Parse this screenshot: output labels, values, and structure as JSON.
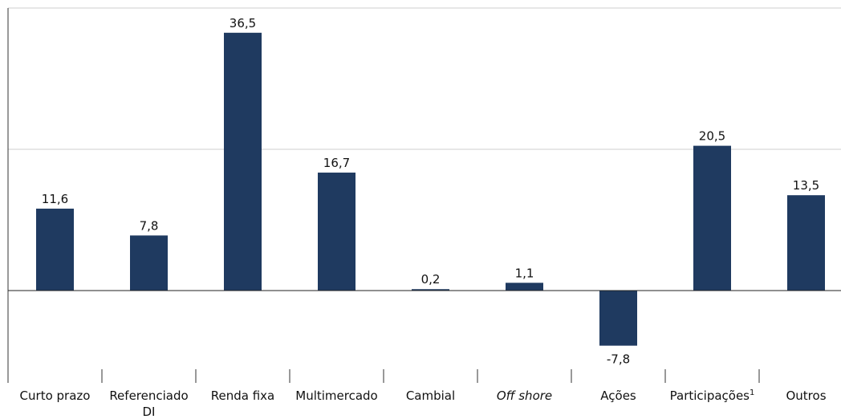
{
  "chart_data": {
    "type": "bar",
    "categories": [
      "Curto prazo",
      "Referenciado DI",
      "Renda fixa",
      "Multimercado",
      "Cambial",
      "Off shore",
      "Ações",
      "Participações¹",
      "Outros"
    ],
    "values": [
      11.6,
      7.8,
      36.5,
      16.7,
      0.2,
      1.1,
      -7.8,
      20.5,
      13.5
    ],
    "value_labels": [
      "11,6",
      "7,8",
      "36,5",
      "16,7",
      "0,2",
      "1,1",
      "-7,8",
      "20,5",
      "13,5"
    ],
    "italic_categories": [
      "Off shore"
    ],
    "ylim": [
      -20,
      40
    ],
    "gridlines": [
      20,
      40
    ],
    "grid": true,
    "legend": false,
    "bar_color": "#1f3a60"
  }
}
